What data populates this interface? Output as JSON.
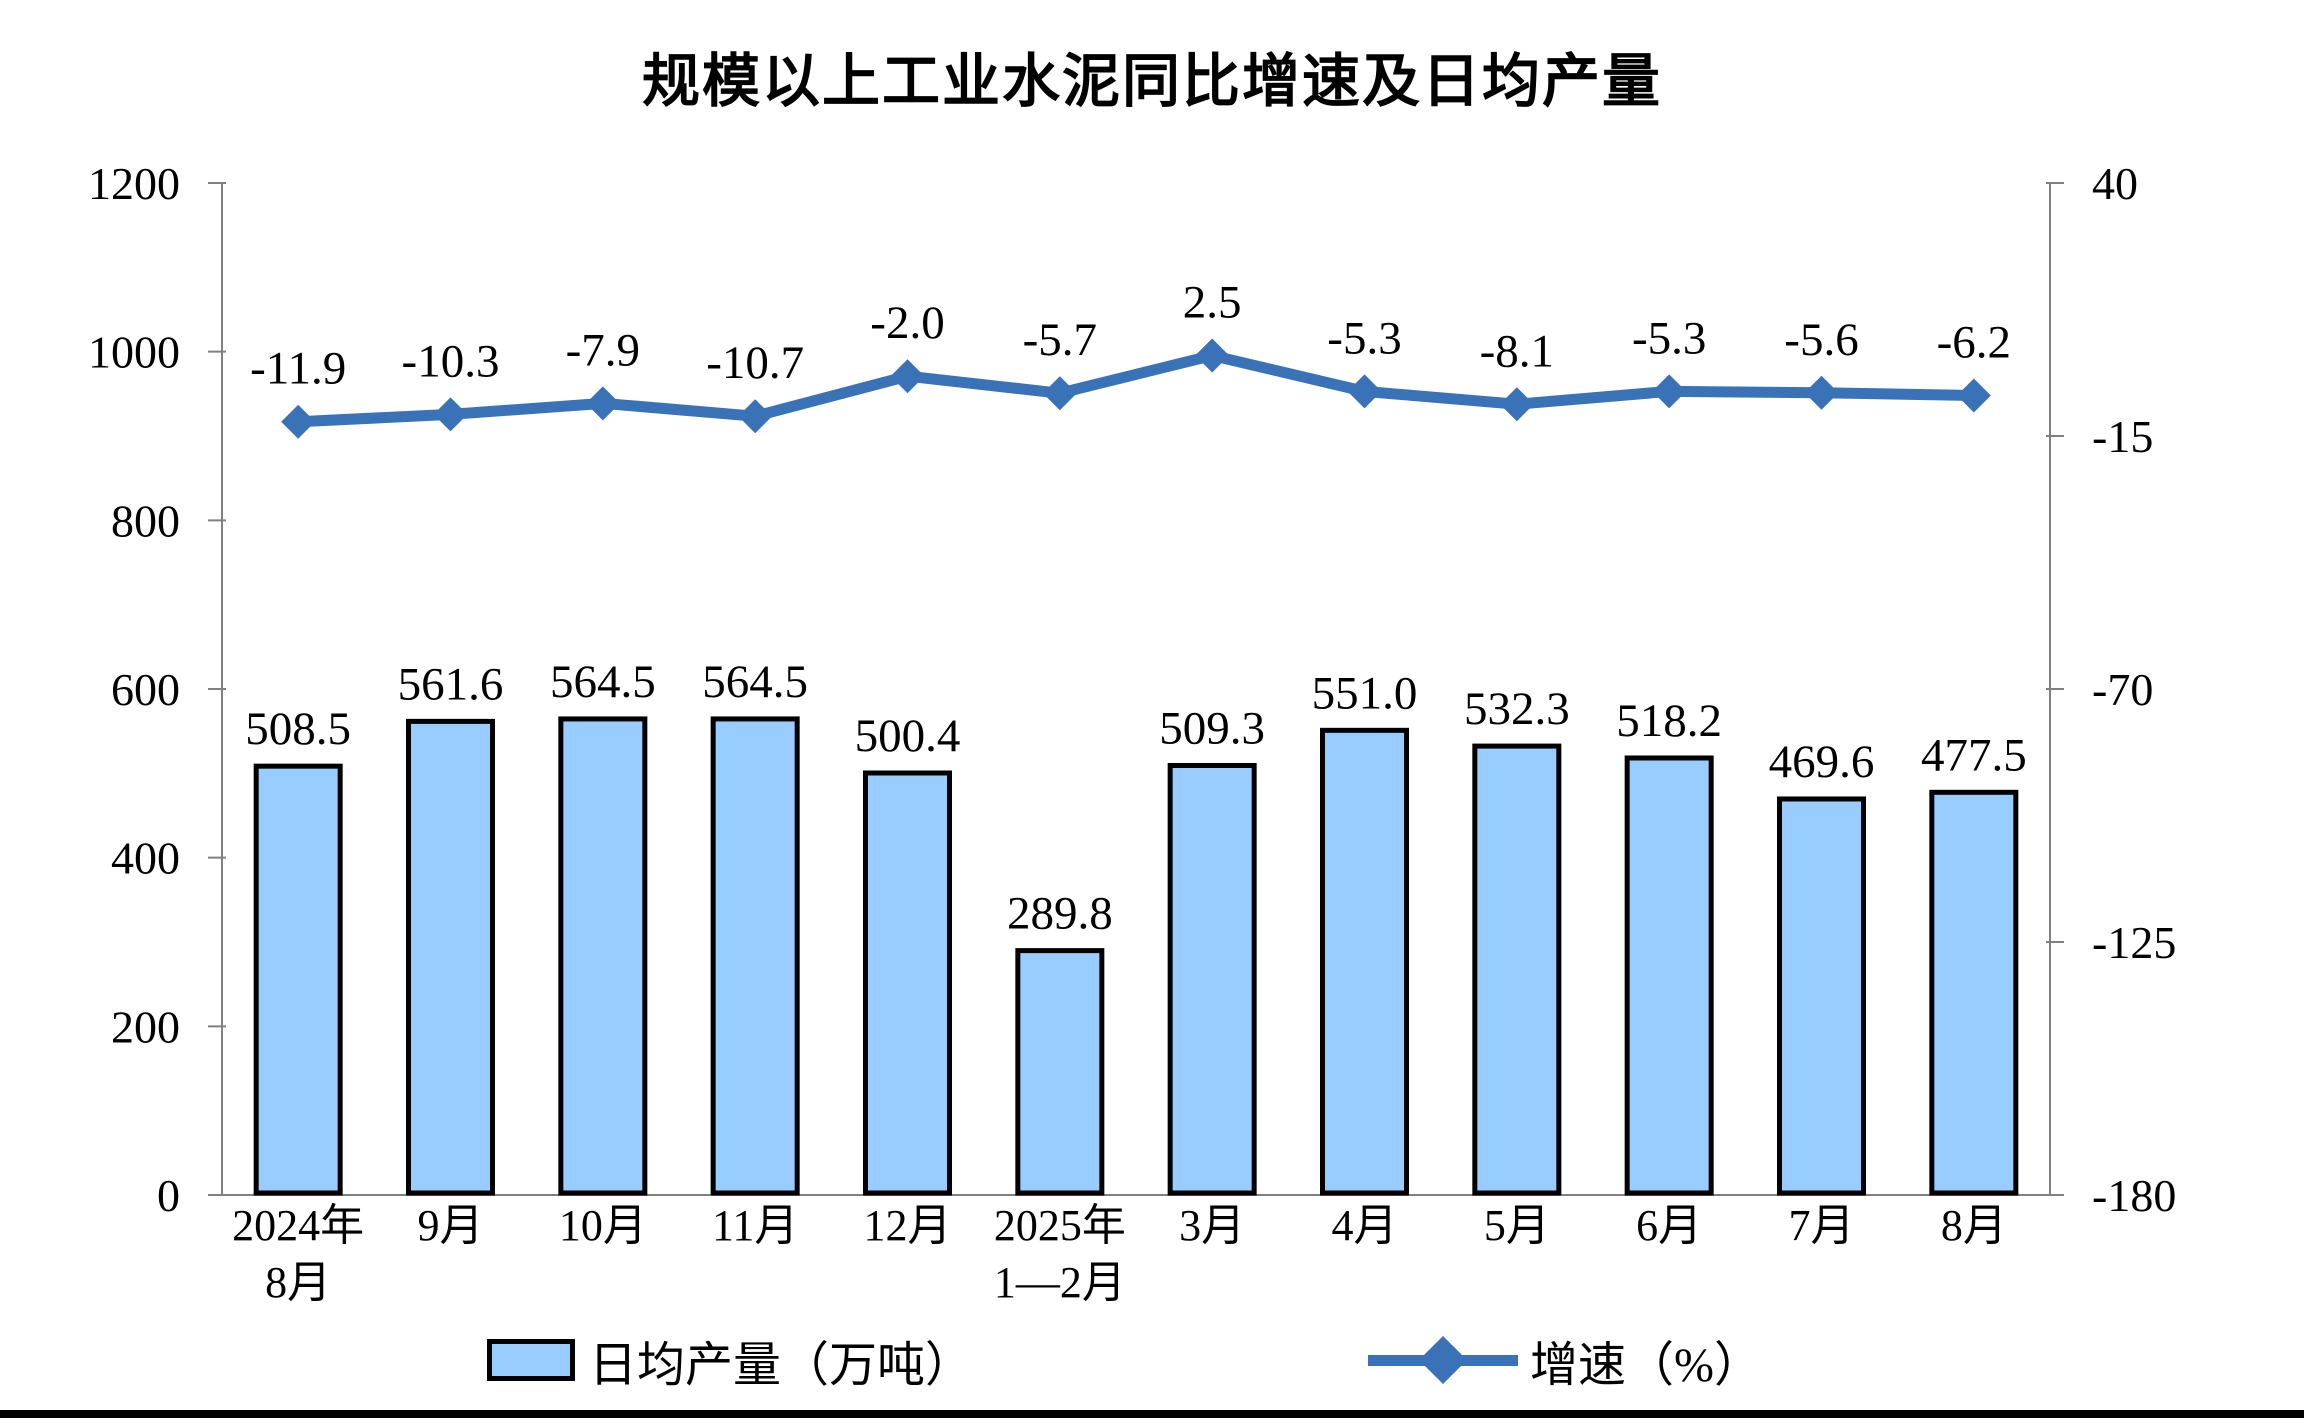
{
  "title": "规模以上工业水泥同比增速及日均产量",
  "chart_data": {
    "type": "bar+line combo",
    "categories": [
      [
        "2024年",
        "8月"
      ],
      [
        "9月"
      ],
      [
        "10月"
      ],
      [
        "11月"
      ],
      [
        "12月"
      ],
      [
        "2025年",
        "1—2月"
      ],
      [
        "3月"
      ],
      [
        "4月"
      ],
      [
        "5月"
      ],
      [
        "6月"
      ],
      [
        "7月"
      ],
      [
        "8月"
      ]
    ],
    "series": [
      {
        "name": "日均产量（万吨）",
        "type": "bar",
        "axis": "left",
        "values": [
          508.5,
          561.6,
          564.5,
          564.5,
          500.4,
          289.8,
          509.3,
          551.0,
          532.3,
          518.2,
          469.6,
          477.5
        ],
        "labels": [
          "508.5",
          "561.6",
          "564.5",
          "564.5",
          "500.4",
          "289.8",
          "509.3",
          "551.0",
          "532.3",
          "518.2",
          "469.6",
          "477.5"
        ]
      },
      {
        "name": "增速（%）",
        "type": "line",
        "axis": "right",
        "values": [
          -11.9,
          -10.3,
          -7.9,
          -10.7,
          -2.0,
          -5.7,
          2.5,
          -5.3,
          -8.1,
          -5.3,
          -5.6,
          -6.2
        ],
        "labels": [
          "-11.9",
          "-10.3",
          "-7.9",
          "-10.7",
          "-2.0",
          "-5.7",
          "2.5",
          "-5.3",
          "-8.1",
          "-5.3",
          "-5.6",
          "-6.2"
        ]
      }
    ],
    "left_axis": {
      "min": 0,
      "max": 1200,
      "step": 200,
      "tick_labels": [
        "1200",
        "1000",
        "800",
        "600",
        "400",
        "200",
        "0"
      ]
    },
    "right_axis": {
      "min": -180,
      "max": 40,
      "step": 55,
      "tick_labels": [
        "40",
        "-15",
        "-70",
        "-125",
        "-180"
      ]
    },
    "grid": false,
    "legend_position": "bottom"
  },
  "legend": {
    "items": [
      {
        "label": "日均产量（万吨）",
        "swatch": "bar"
      },
      {
        "label": "增速（%）",
        "swatch": "line-diamond"
      }
    ]
  },
  "colors": {
    "bar_fill": "#99CCFF",
    "bar_border": "#000000",
    "line": "#3A72B8",
    "axis": "#808080",
    "text": "#000000",
    "background": "#FFFFFF"
  }
}
